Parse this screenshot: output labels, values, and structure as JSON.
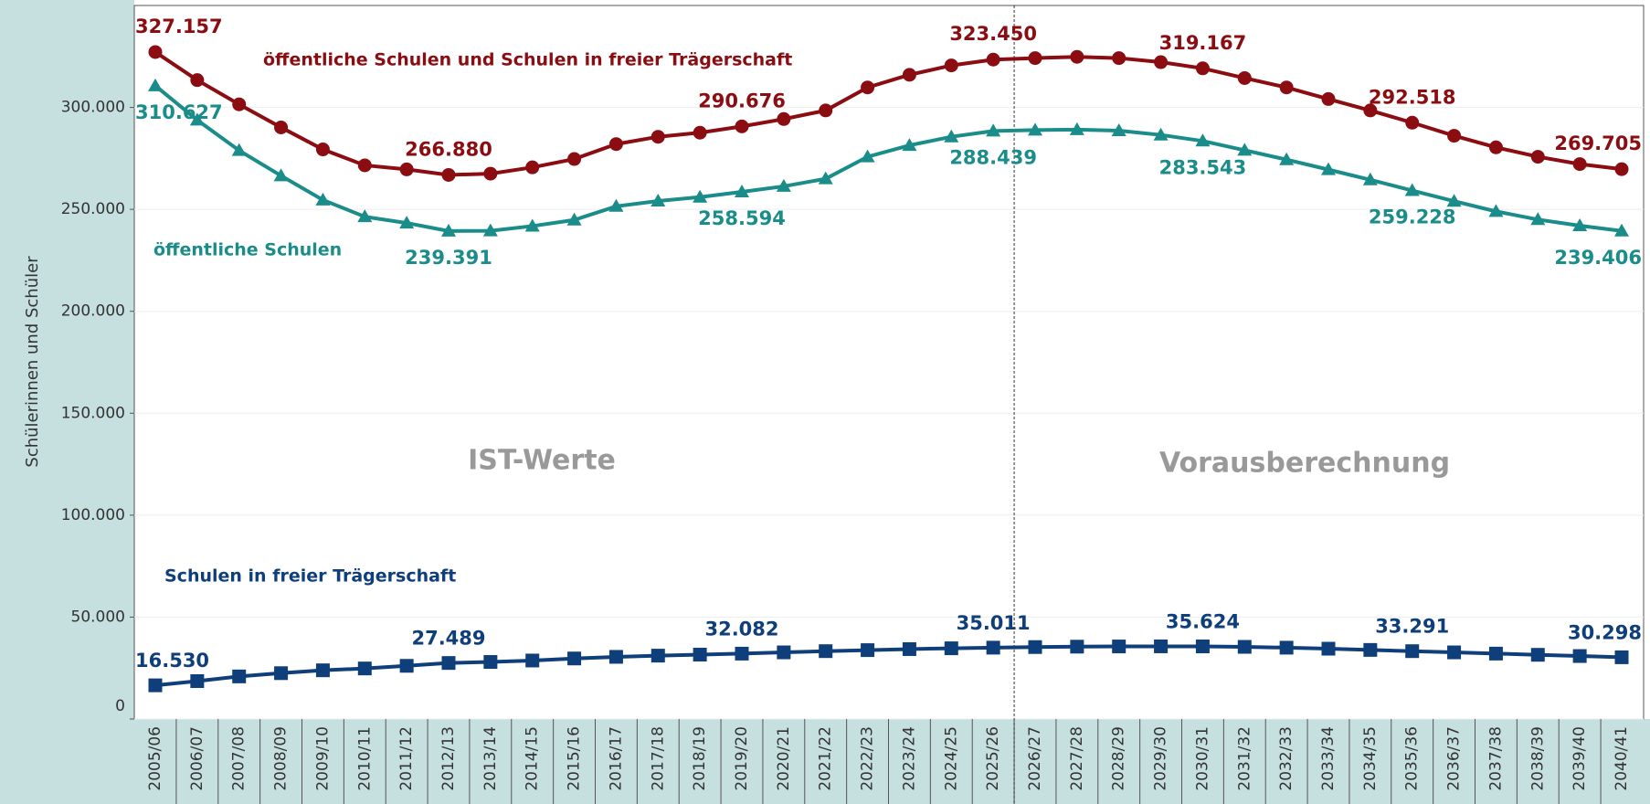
{
  "chart_data": {
    "type": "line",
    "y_label": "Schülerinnen und Schüler",
    "annotations": [
      "IST-Werte",
      "Vorausberechnung"
    ],
    "categories": [
      "2005/06",
      "2006/07",
      "2007/08",
      "2008/09",
      "2009/10",
      "2010/11",
      "2011/12",
      "2012/13",
      "2013/14",
      "2014/15",
      "2015/16",
      "2016/17",
      "2017/18",
      "2018/19",
      "2019/20",
      "2020/21",
      "2021/22",
      "2022/23",
      "2023/24",
      "2024/25",
      "2025/26",
      "2026/27",
      "2027/28",
      "2028/29",
      "2029/30",
      "2030/31",
      "2031/32",
      "2032/33",
      "2033/34",
      "2034/35",
      "2035/36",
      "2036/37",
      "2037/38",
      "2038/39",
      "2039/40",
      "2040/41"
    ],
    "ylim": [
      0,
      350000
    ],
    "yticks": [
      0,
      {
        "value": 50000,
        "label": "50.000"
      },
      {
        "value": 100000,
        "label": "100.000"
      },
      {
        "value": 150000,
        "label": "150.000"
      },
      {
        "value": 200000,
        "label": "200.000"
      },
      {
        "value": 250000,
        "label": "250.000"
      },
      {
        "value": 300000,
        "label": "300.000"
      }
    ],
    "grid": true,
    "series": [
      {
        "name": "öffentliche Schulen und Schulen in freier Trägerschaft",
        "color": "#8b0d12",
        "marker": "circle",
        "values": [
          327157,
          313400,
          301500,
          290200,
          279400,
          271600,
          269600,
          266880,
          267500,
          270600,
          274700,
          282000,
          285600,
          287600,
          290676,
          294300,
          298500,
          309800,
          316000,
          320600,
          323450,
          324200,
          324800,
          324200,
          322200,
          319167,
          314400,
          309800,
          304100,
          298500,
          292518,
          286100,
          280400,
          275800,
          272200,
          269705
        ],
        "value_labels": [
          "327.157",
          null,
          null,
          null,
          null,
          null,
          null,
          "266.880",
          null,
          null,
          null,
          null,
          null,
          null,
          "290.676",
          null,
          null,
          null,
          null,
          null,
          "323.450",
          null,
          null,
          null,
          null,
          "319.167",
          null,
          null,
          null,
          null,
          "292.518",
          null,
          null,
          null,
          null,
          "269.705"
        ]
      },
      {
        "name": "öffentliche Schulen",
        "color": "#1a8c8a",
        "marker": "triangle",
        "values": [
          310627,
          293800,
          278900,
          266500,
          254600,
          246400,
          243300,
          239391,
          239500,
          241800,
          244800,
          251500,
          254100,
          256000,
          258594,
          261300,
          265000,
          275800,
          281400,
          285600,
          288439,
          288900,
          289100,
          288600,
          286500,
          283543,
          279000,
          274400,
          269500,
          264500,
          259228,
          254000,
          249000,
          245000,
          242000,
          239406
        ],
        "value_labels": [
          "310.627",
          null,
          null,
          null,
          null,
          null,
          null,
          "239.391",
          null,
          null,
          null,
          null,
          null,
          null,
          "258.594",
          null,
          null,
          null,
          null,
          null,
          "288.439",
          null,
          null,
          null,
          null,
          "283.543",
          null,
          null,
          null,
          null,
          "259.228",
          null,
          null,
          null,
          null,
          "239.406"
        ]
      },
      {
        "name": "Schulen in freier Trägerschaft",
        "color": "#0f3f7a",
        "marker": "square",
        "values": [
          16530,
          18600,
          20900,
          22500,
          23900,
          24800,
          26100,
          27489,
          28000,
          28700,
          29700,
          30500,
          31100,
          31600,
          32082,
          32700,
          33300,
          33800,
          34300,
          34700,
          35011,
          35300,
          35500,
          35600,
          35650,
          35624,
          35400,
          35000,
          34500,
          33900,
          33291,
          32700,
          32100,
          31500,
          30900,
          30298
        ],
        "value_labels": [
          "16.530",
          null,
          null,
          null,
          null,
          null,
          null,
          "27.489",
          null,
          null,
          null,
          null,
          null,
          null,
          "32.082",
          null,
          null,
          null,
          null,
          null,
          "35.011",
          null,
          null,
          null,
          null,
          "35.624",
          null,
          null,
          null,
          null,
          "33.291",
          null,
          null,
          null,
          null,
          "30.298"
        ]
      }
    ]
  }
}
